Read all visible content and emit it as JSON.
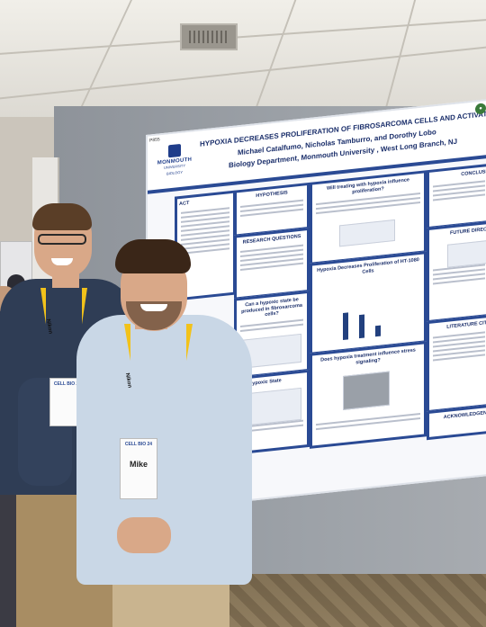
{
  "poster": {
    "id": "P855",
    "logo": {
      "name": "MONMOUTH",
      "subtitle": "UNIVERSITY",
      "dept": "BIOLOGY"
    },
    "title": "HYPOXIA DECREASES PROLIFERATION OF FIBROSARCOMA CELLS AND ACTIVATES JNK",
    "authors": "Michael Catalfumo,  Nicholas Tamburro, and Dorothy Lobo",
    "affiliation": "Biology Department, Monmouth University , West Long Branch, NJ",
    "panels": {
      "abstract": "ACT",
      "hypothesis": "HYPOTHESIS",
      "research_questions": "RESEARCH QUESTIONS",
      "hypoxic_state": "Can a hypoxic state be produced in fibrosarcoma cells?",
      "hypoxic_state_short": "of a Hypoxic State",
      "will_treating": "Will treating with hypoxia influence proliferation?",
      "decreases": "Hypoxia Decreases Proliferation of HT-1080 Cells",
      "stress": "Does hypoxia treatment influence stress signaling?",
      "conclusion": "CONCLUSI",
      "future": "FUTURE DIREC",
      "literature": "LITERATURE CIT",
      "acknowledgements": "ACKNOWLEDGEN"
    },
    "colors": {
      "border": "#2a4a94",
      "title": "#1b2f6b"
    }
  },
  "badges": {
    "left": {
      "event": "CELL BIO 24"
    },
    "right": {
      "event": "CELL BIO 24",
      "first_name": "Mike"
    }
  },
  "lanyard_brand": "Nikon"
}
